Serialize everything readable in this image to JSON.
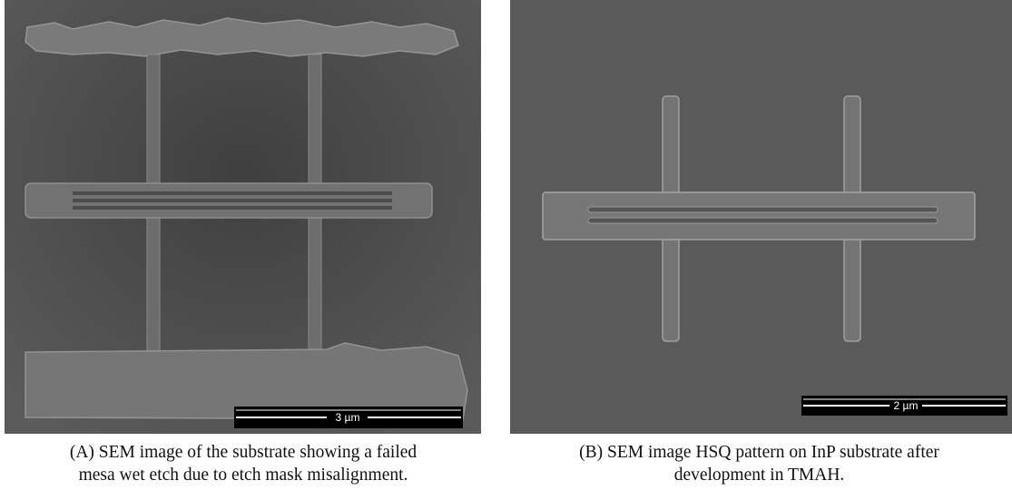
{
  "figures": [
    {
      "label": "(A)",
      "scale_bar": "3 µm",
      "caption_lines": [
        "SEM image of the substrate showing a failed",
        "mesa wet etch due to etch mask misalignment."
      ]
    },
    {
      "label": "(B)",
      "scale_bar": "2 µm",
      "caption_lines": [
        "SEM image HSQ pattern on InP substrate after",
        "development in TMAH."
      ]
    }
  ]
}
